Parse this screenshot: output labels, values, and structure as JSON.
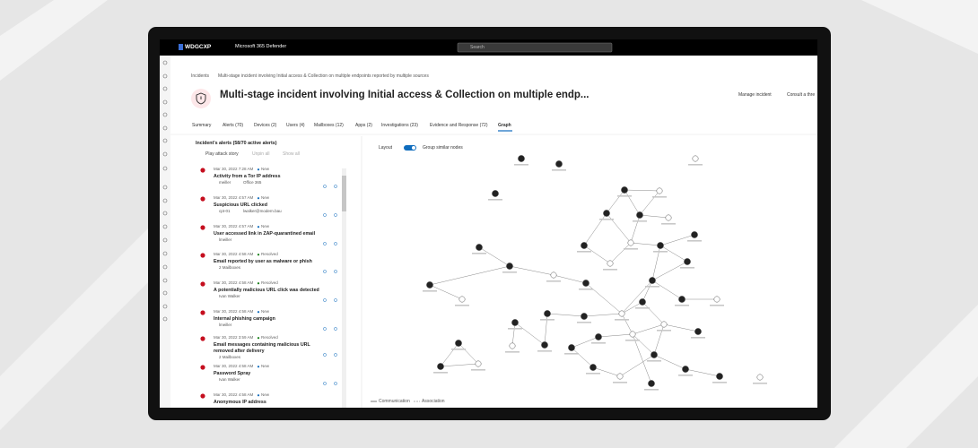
{
  "topbar": {
    "brand": "WDGCXP",
    "product": "Microsoft 365 Defender",
    "search_placeholder": "Search"
  },
  "breadcrumb": [
    "Incidents",
    "Multi-stage incident involving Initial access & Collection on multiple endpoints reported by multiple sources"
  ],
  "header": {
    "title": "Multi-stage incident involving Initial access & Collection on multiple endp...",
    "actions": [
      "Manage incident",
      "Consult a thre"
    ]
  },
  "tabs": [
    "Summary",
    "Alerts (70)",
    "Devices (2)",
    "Users (4)",
    "Mailboxes (12)",
    "Apps (2)",
    "Investigations (23)",
    "Evidence and Response (72)",
    "Graph"
  ],
  "alerts_panel": {
    "heading": "Incident's alerts (58/70 active alerts)",
    "actions": [
      "Play attack story",
      "Unpin all",
      "Show all"
    ],
    "alerts": [
      {
        "time": "Mar 30, 2022 7:28 AM",
        "status": "New",
        "title": "Activity from a Tor IP address",
        "entities": [
          "meiller",
          "Office 365"
        ]
      },
      {
        "time": "Mar 30, 2022 4:57 AM",
        "status": "New",
        "title": "Suspicious URL clicked",
        "entities": [
          "cpt-01",
          "lwalker@modern.bau"
        ]
      },
      {
        "time": "Mar 30, 2022 4:57 AM",
        "status": "New",
        "title": "User accessed link in ZAP-quarantined email",
        "entities": [
          "lmeiller"
        ]
      },
      {
        "time": "Mar 30, 2022 4:58 AM",
        "status": "Resolved",
        "title": "Email reported by user as malware or phish",
        "entities": [
          "2 Mailboxes"
        ]
      },
      {
        "time": "Mar 30, 2022 4:58 AM",
        "status": "Resolved",
        "title": "A potentially malicious URL click was detected",
        "entities": [
          "Ivan Walker"
        ]
      },
      {
        "time": "Mar 30, 2022 4:58 AM",
        "status": "New",
        "title": "Internal phishing campaign",
        "entities": [
          "lmeiller"
        ]
      },
      {
        "time": "Mar 30, 2022 3:59 AM",
        "status": "Resolved",
        "title": "Email messages containing malicious URL removed after delivery",
        "entities": [
          "2 Mailboxes"
        ]
      },
      {
        "time": "Mar 30, 2022 4:58 AM",
        "status": "New",
        "title": "Password Spray",
        "entities": [
          "Ivan Walker"
        ]
      },
      {
        "time": "Mar 30, 2022 4:58 AM",
        "status": "New",
        "title": "Anonymous IP address",
        "entities": []
      }
    ]
  },
  "graph": {
    "layout_label": "Layout",
    "toggle_label": "Group similar nodes",
    "legend": [
      "Communication",
      "Association"
    ]
  }
}
